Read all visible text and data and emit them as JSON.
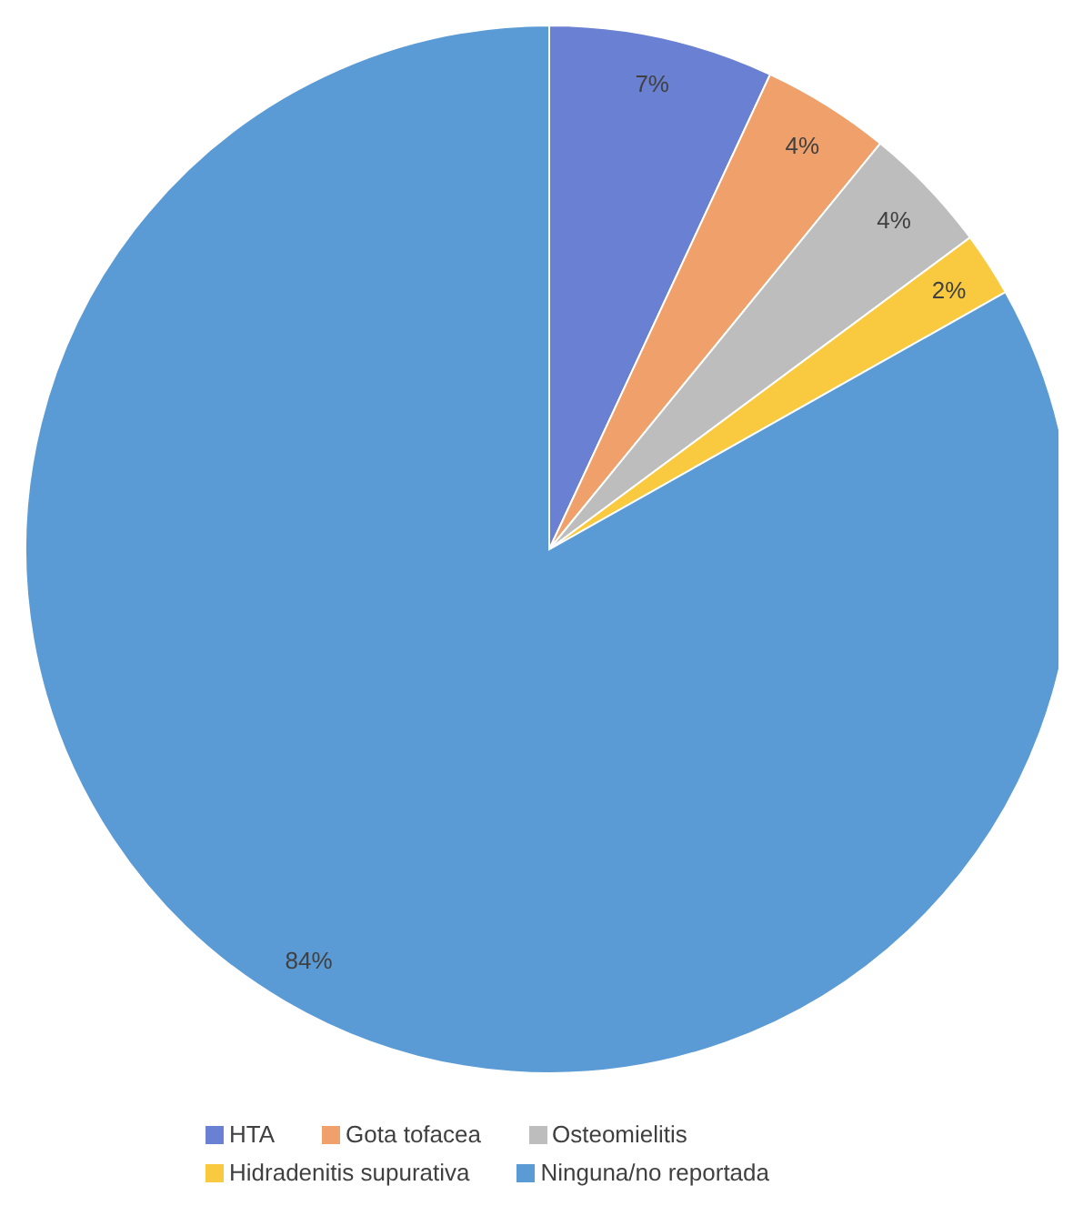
{
  "chart_data": {
    "type": "pie",
    "categories": [
      "HTA",
      "Gota tofacea",
      "Osteomielitis",
      "Hidradenitis supurativa",
      "Ninguna/no reportada"
    ],
    "values": [
      7,
      4,
      4,
      2,
      84
    ],
    "colors": [
      "#6a80d2",
      "#f0a06a",
      "#bdbdbd",
      "#f9c940",
      "#5b9bd5"
    ],
    "value_labels": [
      "7%",
      "4%",
      "4%",
      "2%",
      "84%"
    ],
    "legend": "bottom"
  }
}
